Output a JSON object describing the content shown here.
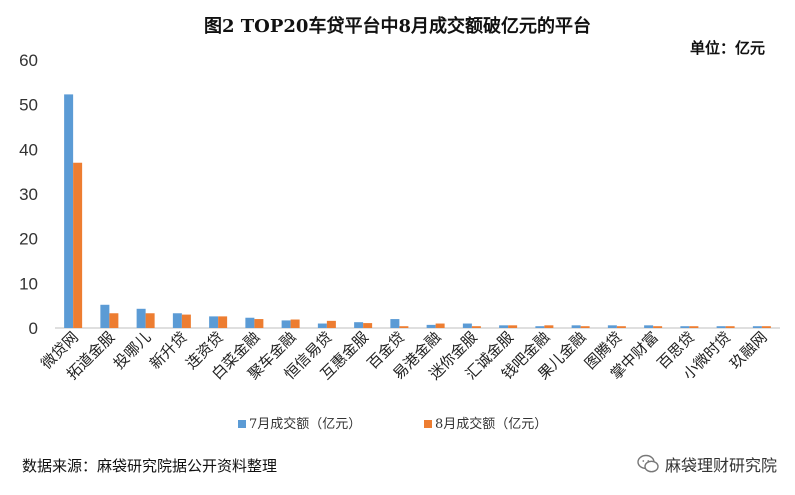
{
  "title": "图2   TOP20车贷平台中8月成交额破亿元的平台",
  "unit_label": "单位：亿元",
  "source": "数据来源：麻袋研究院据公开资料整理",
  "watermark": "麻袋理财研究院",
  "chart_data": {
    "type": "bar",
    "categories": [
      "微贷网",
      "拓道金服",
      "投哪儿",
      "新升贷",
      "连资贷",
      "白菜金融",
      "聚车金融",
      "恒信易贷",
      "互惠金服",
      "百金贷",
      "易港金融",
      "迷你金服",
      "汇诚金服",
      "钱吧金融",
      "果儿金融",
      "图腾贷",
      "掌中财富",
      "百思贷",
      "小微时贷",
      "玖融网"
    ],
    "series": [
      {
        "name": "7月成交额（亿元）",
        "color": "#5b9bd5",
        "values": [
          52.3,
          5.2,
          4.3,
          3.3,
          2.6,
          2.3,
          1.7,
          1.0,
          1.3,
          2.0,
          0.7,
          1.0,
          0.6,
          0.4,
          0.6,
          0.6,
          0.6,
          0.4,
          0.4,
          0.4
        ]
      },
      {
        "name": "8月成交额（亿元）",
        "color": "#ed7d31",
        "values": [
          37.0,
          3.3,
          3.3,
          3.0,
          2.6,
          2.0,
          1.9,
          1.6,
          1.1,
          0.4,
          1.0,
          0.4,
          0.6,
          0.6,
          0.4,
          0.4,
          0.4,
          0.4,
          0.4,
          0.4
        ]
      }
    ],
    "xlabel": "",
    "ylabel": "",
    "ylim": [
      0,
      60
    ],
    "yticks": [
      0,
      10,
      20,
      30,
      40,
      50,
      60
    ],
    "grid": false,
    "legend_position": "bottom"
  }
}
